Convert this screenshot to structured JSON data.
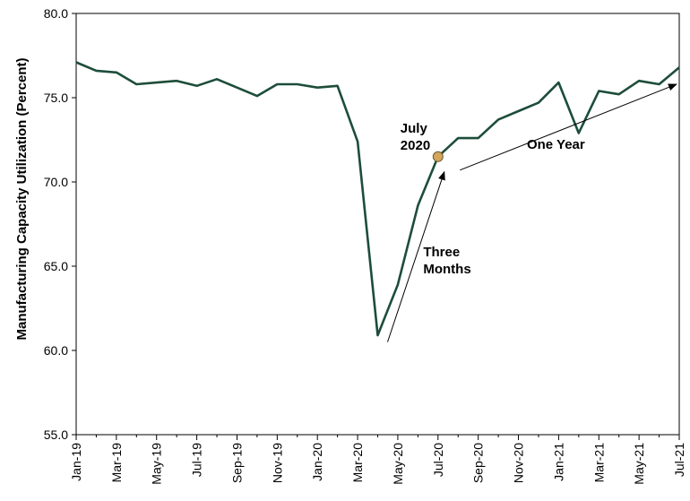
{
  "chart_data": {
    "type": "line",
    "title": "",
    "xlabel": "",
    "ylabel": "Manufacturing Capacity Utilization (Percent)",
    "ylim": [
      55.0,
      80.0
    ],
    "yticks": [
      "55.0",
      "60.0",
      "65.0",
      "70.0",
      "75.0",
      "80.0"
    ],
    "grid": false,
    "x": [
      "Jan-19",
      "Feb-19",
      "Mar-19",
      "Apr-19",
      "May-19",
      "Jun-19",
      "Jul-19",
      "Aug-19",
      "Sep-19",
      "Oct-19",
      "Nov-19",
      "Dec-19",
      "Jan-20",
      "Feb-20",
      "Mar-20",
      "Apr-20",
      "May-20",
      "Jun-20",
      "Jul-20",
      "Aug-20",
      "Sep-20",
      "Oct-20",
      "Nov-20",
      "Dec-20",
      "Jan-21",
      "Feb-21",
      "Mar-21",
      "Apr-21",
      "May-21",
      "Jun-21",
      "Jul-21"
    ],
    "xtick_labels": [
      "Jan-19",
      "Mar-19",
      "May-19",
      "Jul-19",
      "Sep-19",
      "Nov-19",
      "Jan-20",
      "Mar-20",
      "May-20",
      "Jul-20",
      "Sep-20",
      "Nov-20",
      "Jan-21",
      "Mar-21",
      "May-21",
      "Jul-21"
    ],
    "series": [
      {
        "name": "",
        "color": "#1d4d3a",
        "values": [
          77.1,
          76.6,
          76.5,
          75.8,
          75.9,
          76.0,
          75.7,
          76.1,
          75.6,
          75.1,
          75.8,
          75.8,
          75.6,
          75.7,
          72.4,
          60.9,
          63.9,
          68.6,
          71.5,
          72.6,
          72.6,
          73.7,
          74.2,
          74.7,
          75.9,
          72.9,
          75.4,
          75.2,
          76.0,
          75.8,
          76.8
        ]
      }
    ],
    "highlight": {
      "x": "Jul-20",
      "y": 71.5,
      "label_line1": "July",
      "label_line2": "2020",
      "color": "#d4a55a"
    },
    "annotations": [
      {
        "line1": "Three",
        "line2": "Months",
        "from": {
          "x": "Apr-20",
          "y": 60.5
        },
        "to": {
          "x": "Jul-20",
          "y": 70.6
        }
      },
      {
        "line1": "One Year",
        "line2": "",
        "from": {
          "x": "Aug-20",
          "y": 70.7
        },
        "to": {
          "x": "Jul-21",
          "y": 75.8
        }
      }
    ]
  }
}
